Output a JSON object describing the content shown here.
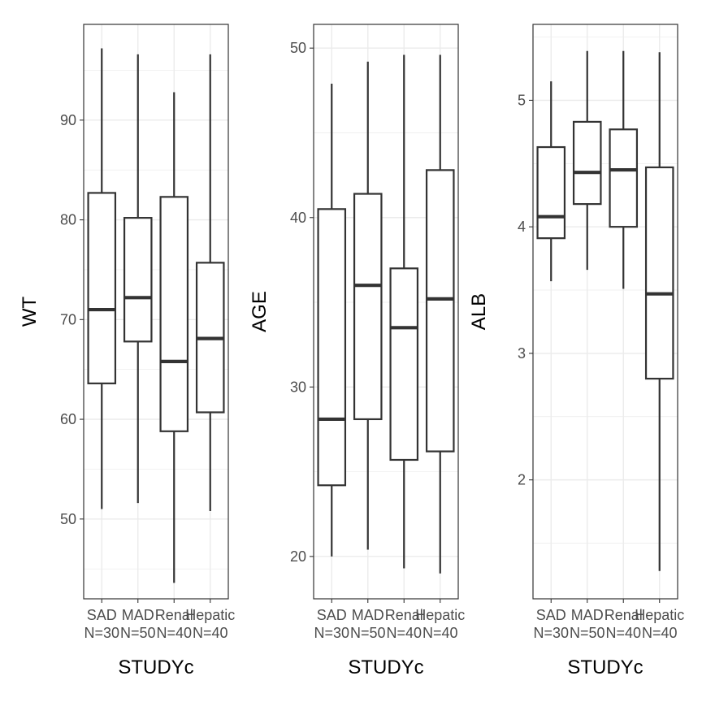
{
  "chart_data": [
    {
      "type": "box",
      "xlabel": "STUDYc",
      "ylabel": "WT",
      "categories": [
        "SAD\nN=30",
        "MAD\nN=50",
        "Renal\nN=40",
        "Hepatic\nN=40"
      ],
      "ylim": [
        42,
        99.6
      ],
      "yticks": [
        50,
        60,
        70,
        80,
        90
      ],
      "boxes": [
        {
          "min": 51.0,
          "q1": 63.6,
          "median": 71.0,
          "q3": 82.7,
          "max": 97.2
        },
        {
          "min": 51.6,
          "q1": 67.8,
          "median": 72.2,
          "q3": 80.2,
          "max": 96.6
        },
        {
          "min": 43.6,
          "q1": 58.8,
          "median": 65.8,
          "q3": 82.3,
          "max": 92.8
        },
        {
          "min": 50.8,
          "q1": 60.7,
          "median": 68.1,
          "q3": 75.7,
          "max": 96.6
        }
      ]
    },
    {
      "type": "box",
      "xlabel": "STUDYc",
      "ylabel": "AGE",
      "categories": [
        "SAD\nN=30",
        "MAD\nN=50",
        "Renal\nN=40",
        "Hepatic\nN=40"
      ],
      "ylim": [
        17.5,
        51.4
      ],
      "yticks": [
        20,
        30,
        40,
        50
      ],
      "boxes": [
        {
          "min": 20.0,
          "q1": 24.2,
          "median": 28.1,
          "q3": 40.5,
          "max": 47.9
        },
        {
          "min": 20.4,
          "q1": 28.1,
          "median": 36.0,
          "q3": 41.4,
          "max": 49.2
        },
        {
          "min": 19.3,
          "q1": 25.7,
          "median": 33.5,
          "q3": 37.0,
          "max": 49.6
        },
        {
          "min": 19.0,
          "q1": 26.2,
          "median": 35.2,
          "q3": 42.8,
          "max": 49.6
        }
      ]
    },
    {
      "type": "box",
      "xlabel": "STUDYc",
      "ylabel": "ALB",
      "categories": [
        "SAD\nN=30",
        "MAD\nN=50",
        "Renal\nN=40",
        "Hepatic\nN=40"
      ],
      "ylim": [
        1.06,
        5.6
      ],
      "yticks": [
        2,
        3,
        4,
        5
      ],
      "boxes": [
        {
          "min": 3.57,
          "q1": 3.91,
          "median": 4.08,
          "q3": 4.63,
          "max": 5.15
        },
        {
          "min": 3.66,
          "q1": 4.18,
          "median": 4.43,
          "q3": 4.83,
          "max": 5.39
        },
        {
          "min": 3.51,
          "q1": 4.0,
          "median": 4.45,
          "q3": 4.77,
          "max": 5.39
        },
        {
          "min": 1.28,
          "q1": 2.8,
          "median": 3.47,
          "q3": 4.47,
          "max": 5.38
        }
      ]
    }
  ]
}
